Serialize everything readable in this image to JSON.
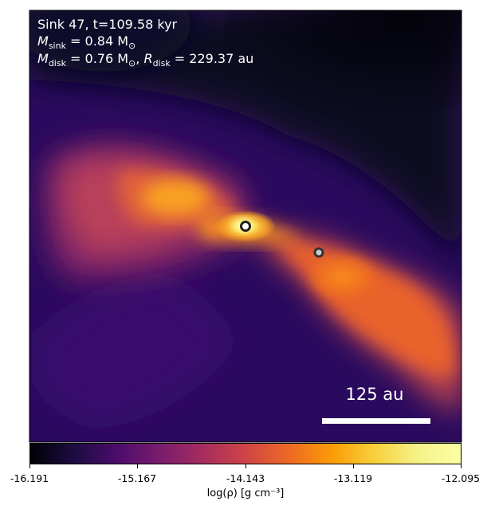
{
  "annotation": {
    "sink_line": "Sink 47, t=109.58 kyr",
    "msink_symbol": "M",
    "msink_sub": "sink",
    "msink_value": " = 0.84 M",
    "msink_sun": "⊙",
    "mdisk_symbol": "M",
    "mdisk_sub": "disk",
    "mdisk_value": " = 0.76 M",
    "mdisk_sun": "⊙",
    "rdisk_sep": ", ",
    "rdisk_symbol": "R",
    "rdisk_sub": "disk",
    "rdisk_value": " = 229.37 au"
  },
  "scalebar": {
    "label": "125 au"
  },
  "colorbar": {
    "min": -16.191,
    "max": -12.095,
    "ticks": [
      "-16.191",
      "-15.167",
      "-14.143",
      "-13.119",
      "-12.095"
    ],
    "label": "log(ρ) [g cm⁻³]"
  },
  "sinks": [
    {
      "name": "sink-particle-primary"
    },
    {
      "name": "sink-particle-secondary"
    }
  ],
  "colors": {
    "background_dark": "#07051a",
    "outer_purple": "#2a0a5e",
    "mid_magenta": "#b73779",
    "orange": "#f1731d",
    "yellow": "#fcffa4"
  }
}
